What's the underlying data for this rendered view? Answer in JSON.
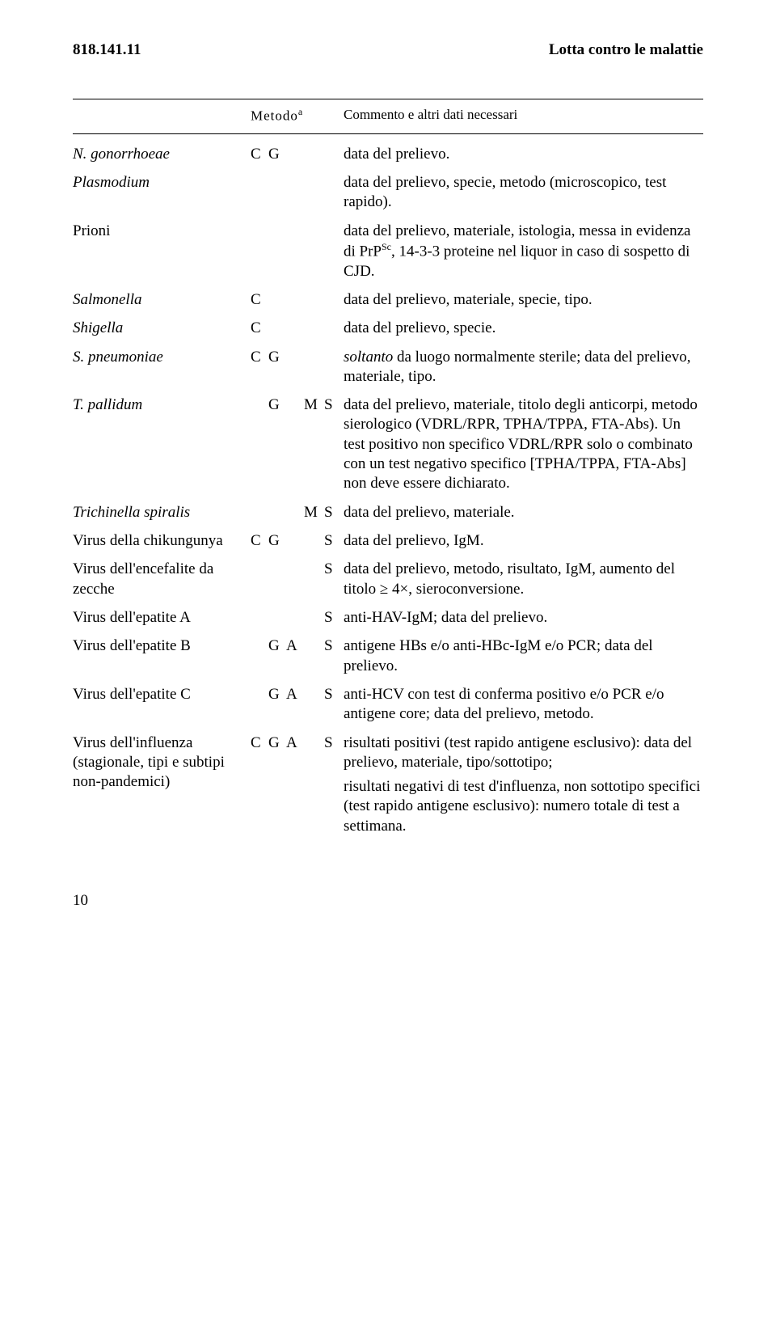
{
  "header": {
    "code": "818.141.11",
    "title": "Lotta contro le malattie"
  },
  "table_header": {
    "method": "Metodo",
    "method_sup": "a",
    "comment": "Commento e altri dati necessari"
  },
  "rows": [
    {
      "name": "N. gonorrhoeae",
      "name_italic": true,
      "method": {
        "c": "C",
        "g": "G",
        "a": "",
        "m": "",
        "s": ""
      },
      "comments": [
        "data del prelievo."
      ]
    },
    {
      "name": "Plasmodium",
      "name_italic": true,
      "method": {
        "c": "",
        "g": "",
        "a": "",
        "m": "",
        "s": ""
      },
      "comments": [
        "data del prelievo, specie, metodo (microscopico, test rapido)."
      ]
    },
    {
      "name": "Prioni",
      "name_italic": false,
      "method": {
        "c": "",
        "g": "",
        "a": "",
        "m": "",
        "s": ""
      },
      "comments": [
        "data del prelievo, materiale, istologia, messa in evidenza di PrPSc, 14-3-3 proteine nel liquor in caso di sospetto di CJD."
      ],
      "has_sc_sup": true
    },
    {
      "name": "Salmonella",
      "name_italic": true,
      "method": {
        "c": "C",
        "g": "",
        "a": "",
        "m": "",
        "s": ""
      },
      "comments": [
        "data del prelievo, materiale, specie, tipo."
      ]
    },
    {
      "name": "Shigella",
      "name_italic": true,
      "method": {
        "c": "C",
        "g": "",
        "a": "",
        "m": "",
        "s": ""
      },
      "comments": [
        "data del prelievo, specie."
      ]
    },
    {
      "name": "S. pneumoniae",
      "name_italic": true,
      "method": {
        "c": "C",
        "g": "G",
        "a": "",
        "m": "",
        "s": ""
      },
      "comments": [
        "<i>soltanto</i> da luogo normalmente sterile; data del prelievo, materiale, tipo."
      ]
    },
    {
      "name": "T. pallidum",
      "name_italic": true,
      "method": {
        "c": "",
        "g": "G",
        "a": "",
        "m": "M",
        "s": "S"
      },
      "comments": [
        "data del prelievo, materiale, titolo degli anticorpi, metodo sierologico (VDRL/RPR, TPHA/TPPA, FTA-Abs). Un test positivo non specifico VDRL/RPR solo o combinato con un test negativo specifico [TPHA/TPPA, FTA-Abs] non deve essere dichiarato."
      ]
    },
    {
      "name": "Trichinella spiralis",
      "name_italic": true,
      "method": {
        "c": "",
        "g": "",
        "a": "",
        "m": "M",
        "s": "S"
      },
      "comments": [
        "data del prelievo, materiale."
      ]
    },
    {
      "name": "Virus della chikungunya",
      "name_italic": false,
      "method": {
        "c": "C",
        "g": "G",
        "a": "",
        "m": "",
        "s": "S"
      },
      "comments": [
        "data del prelievo, IgM."
      ]
    },
    {
      "name": "Virus dell'encefalite da zecche",
      "name_italic": false,
      "method": {
        "c": "",
        "g": "",
        "a": "",
        "m": "",
        "s": "S"
      },
      "comments": [
        "data del prelievo, metodo, risultato, IgM, aumento del titolo ≥ 4×, sieroconversione."
      ]
    },
    {
      "name": "Virus dell'epatite A",
      "name_italic": false,
      "method": {
        "c": "",
        "g": "",
        "a": "",
        "m": "",
        "s": "S"
      },
      "comments": [
        "anti-HAV-IgM; data del prelievo."
      ]
    },
    {
      "name": "Virus dell'epatite B",
      "name_italic": false,
      "method": {
        "c": "",
        "g": "G",
        "a": "A",
        "m": "",
        "s": "S"
      },
      "comments": [
        "antigene HBs e/o anti-HBc-IgM e/o PCR; data del prelievo."
      ]
    },
    {
      "name": "Virus dell'epatite C",
      "name_italic": false,
      "method": {
        "c": "",
        "g": "G",
        "a": "A",
        "m": "",
        "s": "S"
      },
      "comments": [
        "anti-HCV con test di conferma positivo e/o PCR e/o antigene core; data del prelievo, metodo."
      ]
    },
    {
      "name": "Virus dell'influenza (stagionale, tipi e subtipi non-pandemici)",
      "name_italic": false,
      "method": {
        "c": "C",
        "g": "G",
        "a": "A",
        "m": "",
        "s": "S"
      },
      "comments": [
        "risultati positivi (test rapido antigene esclusivo): data del prelievo, materiale, tipo/sottotipo;",
        "risultati negativi di test d'influenza, non sottotipo specifici (test rapido antigene esclusivo): numero totale di test a settimana."
      ]
    }
  ],
  "page_number": "10"
}
